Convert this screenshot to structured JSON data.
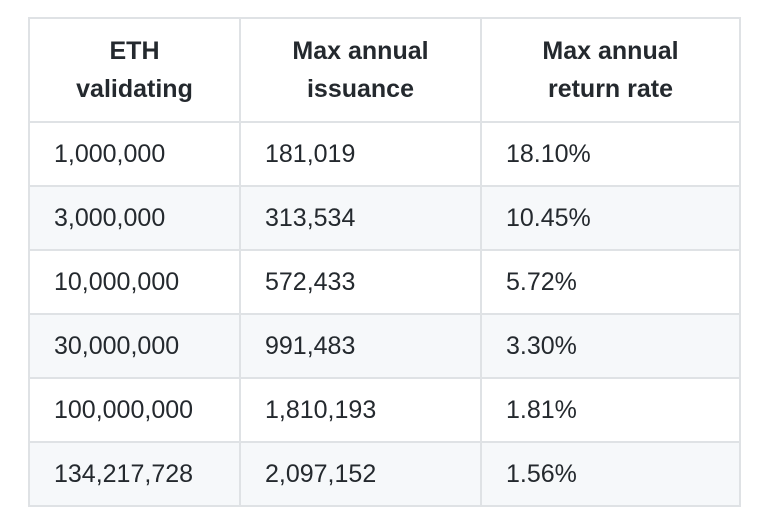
{
  "table": {
    "headers": [
      {
        "line1": "ETH",
        "line2": "validating"
      },
      {
        "line1": "Max annual",
        "line2": "issuance"
      },
      {
        "line1": "Max annual",
        "line2": "return rate"
      }
    ],
    "rows": [
      [
        "1,000,000",
        "181,019",
        "18.10%"
      ],
      [
        "3,000,000",
        "313,534",
        "10.45%"
      ],
      [
        "10,000,000",
        "572,433",
        "5.72%"
      ],
      [
        "30,000,000",
        "991,483",
        "3.30%"
      ],
      [
        "100,000,000",
        "1,810,193",
        "1.81%"
      ],
      [
        "134,217,728",
        "2,097,152",
        "1.56%"
      ]
    ]
  },
  "colors": {
    "border": "#dfe2e5",
    "stripe": "#f6f8fa",
    "text": "#24292e"
  }
}
